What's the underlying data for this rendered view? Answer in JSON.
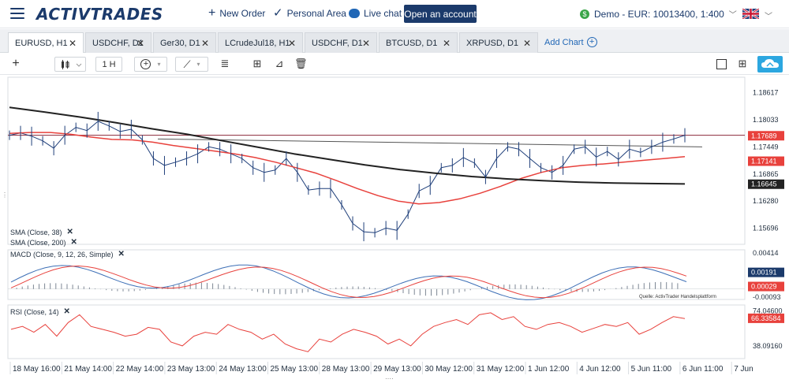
{
  "header": {
    "logo": "ACTIVTRADES",
    "new_order": "New Order",
    "personal_area": "Personal Area",
    "live_chat": "Live chat",
    "open_account": "Open an account",
    "account": "Demo - EUR: 10013400, 1:400"
  },
  "tabs": [
    {
      "label": "EURUSD, H1",
      "active": true
    },
    {
      "label": "USDCHF, D1"
    },
    {
      "label": "Ger30, D1"
    },
    {
      "label": "LCrudeJul18, H1"
    },
    {
      "label": "USDCHF, D1"
    },
    {
      "label": "BTCUSD, D1"
    },
    {
      "label": "XRPUSD, D1"
    }
  ],
  "add_chart": "Add Chart",
  "toolbar": {
    "timeframe": "1 H"
  },
  "indicators": {
    "sma38": "SMA (Close, 38)",
    "sma200": "SMA (Close, 200)",
    "macd": "MACD (Close, 9, 12, 26, Simple)",
    "rsi": "RSI (Close, 14)"
  },
  "source_note": "Quelle: ActivTrader Handelsplattform",
  "colors": {
    "brand": "#1b3a6b",
    "price_line": "#1f3f7a",
    "sma38": "#e8413c",
    "sma200": "#222222",
    "current_price_bg": "#e8413c",
    "rsi_line": "#e8413c",
    "hline": "#8b2a3a",
    "accent_blue": "#2ca7e0"
  },
  "chart_data": [
    {
      "type": "line",
      "title": "EURUSD, H1",
      "price_axis_ticks": [
        "1.18617",
        "1.18033",
        "1.17449",
        "1.16865",
        "1.16280",
        "1.15696"
      ],
      "price_labels": [
        {
          "value": "1.17689",
          "series": "price",
          "color": "#e8413c"
        },
        {
          "value": "1.17141",
          "series": "sma38",
          "color": "#e8413c"
        },
        {
          "value": "1.16645",
          "series": "sma200",
          "color": "#222222"
        }
      ],
      "ylim": [
        1.1535,
        1.1895
      ],
      "x_labels": [
        "18 May 16:00",
        "21 May 14:00",
        "22 May 14:00",
        "23 May 13:00",
        "24 May 13:00",
        "25 May 13:00",
        "28 May 13:00",
        "29 May 13:00",
        "30 May 12:00",
        "31 May 12:00",
        "1 Jun 12:00",
        "4 Jun 12:00",
        "5 Jun 11:00",
        "6 Jun 11:00",
        "7 Jun"
      ],
      "horizontal_line": 1.177,
      "trend_line": {
        "from": 1.1762,
        "to": 1.1745
      },
      "series": [
        {
          "name": "Price",
          "values": [
            1.177,
            1.1775,
            1.1768,
            1.1758,
            1.1742,
            1.177,
            1.1787,
            1.178,
            1.18,
            1.179,
            1.1778,
            1.1783,
            1.176,
            1.172,
            1.1705,
            1.1712,
            1.172,
            1.173,
            1.1745,
            1.174,
            1.173,
            1.172,
            1.17,
            1.169,
            1.1695,
            1.172,
            1.169,
            1.1652,
            1.1655,
            1.1655,
            1.162,
            1.158,
            1.1562,
            1.156,
            1.157,
            1.1565,
            1.16,
            1.165,
            1.1662,
            1.17,
            1.1705,
            1.1722,
            1.171,
            1.168,
            1.172,
            1.1745,
            1.174,
            1.172,
            1.17,
            1.169,
            1.1705,
            1.174,
            1.1745,
            1.1723,
            1.1735,
            1.1718,
            1.174,
            1.1733,
            1.1745,
            1.1755,
            1.1762,
            1.177
          ]
        },
        {
          "name": "SMA (Close, 38)",
          "values": [
            1.1774,
            1.1776,
            1.1776,
            1.1772,
            1.1766,
            1.1761,
            1.176,
            1.1755,
            1.1748,
            1.1742,
            1.1736,
            1.173,
            1.1722,
            1.1712,
            1.17,
            1.1688,
            1.1672,
            1.1655,
            1.164,
            1.1628,
            1.1622,
            1.1625,
            1.1633,
            1.1645,
            1.166,
            1.1677,
            1.169,
            1.17,
            1.1705,
            1.1708,
            1.1712,
            1.1716,
            1.172,
            1.1724
          ]
        },
        {
          "name": "SMA (Close, 200)",
          "values": [
            1.183,
            1.182,
            1.1809,
            1.1797,
            1.1784,
            1.1772,
            1.1758,
            1.1744,
            1.173,
            1.1718,
            1.1706,
            1.1696,
            1.1688,
            1.1681,
            1.1676,
            1.1672,
            1.1669,
            1.1667,
            1.1666,
            1.1665
          ]
        }
      ]
    },
    {
      "type": "line",
      "title": "MACD (Close, 9, 12, 26, Simple)",
      "axis_ticks": [
        "0.00414",
        "-0.00093"
      ],
      "value_labels": [
        "0.00191",
        "0.00029"
      ],
      "ylim": [
        -0.0012,
        0.0045
      ]
    },
    {
      "type": "line",
      "title": "RSI (Close, 14)",
      "axis_ticks": [
        "74.04600",
        "38.09160"
      ],
      "value_labels": [
        "66.33584"
      ],
      "ylim": [
        25,
        80
      ],
      "series": [
        {
          "name": "RSI",
          "values": [
            55,
            58,
            52,
            60,
            48,
            62,
            70,
            58,
            55,
            52,
            48,
            50,
            57,
            55,
            42,
            38,
            48,
            52,
            50,
            60,
            55,
            52,
            45,
            50,
            40,
            35,
            32,
            45,
            42,
            50,
            55,
            52,
            48,
            40,
            45,
            38,
            50,
            58,
            62,
            65,
            60,
            70,
            72,
            65,
            68,
            58,
            55,
            60,
            62,
            58,
            52,
            56,
            60,
            58,
            62,
            50,
            55,
            62,
            68,
            66
          ]
        }
      ]
    }
  ]
}
